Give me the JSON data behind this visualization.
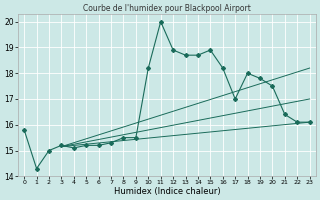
{
  "title": "Courbe de l'humidex pour Blackpool Airport",
  "xlabel": "Humidex (Indice chaleur)",
  "xlim": [
    -0.5,
    23.5
  ],
  "ylim": [
    14,
    20.3
  ],
  "yticks": [
    14,
    15,
    16,
    17,
    18,
    19,
    20
  ],
  "xticks": [
    0,
    1,
    2,
    3,
    4,
    5,
    6,
    7,
    8,
    9,
    10,
    11,
    12,
    13,
    14,
    15,
    16,
    17,
    18,
    19,
    20,
    21,
    22,
    23
  ],
  "bg_color": "#cce8e6",
  "line_color": "#1a6b5a",
  "main_series_x": [
    0,
    1,
    2,
    3,
    4,
    5,
    6,
    7,
    8,
    9,
    10,
    11,
    12,
    13,
    14,
    15,
    16,
    17,
    18,
    19,
    20,
    21,
    22,
    23
  ],
  "main_series_y": [
    15.8,
    14.3,
    15.0,
    15.2,
    15.1,
    15.2,
    15.2,
    15.3,
    15.5,
    15.5,
    18.2,
    20.0,
    18.9,
    18.7,
    18.7,
    18.9,
    18.2,
    17.0,
    18.0,
    17.8,
    17.5,
    16.4,
    16.1,
    16.1
  ],
  "trend_lines": [
    {
      "x": [
        3,
        23
      ],
      "y": [
        15.15,
        17.0
      ]
    },
    {
      "x": [
        3,
        23
      ],
      "y": [
        15.15,
        16.1
      ]
    },
    {
      "x": [
        3,
        23
      ],
      "y": [
        15.15,
        18.2
      ]
    }
  ]
}
